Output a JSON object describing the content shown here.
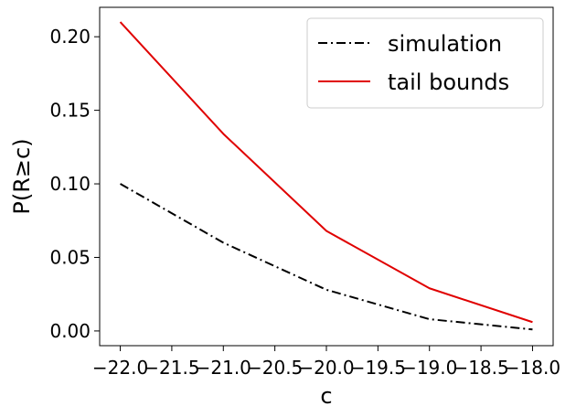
{
  "chart_data": {
    "type": "line",
    "xlabel": "c",
    "ylabel": "P(R≥c)",
    "xlim": [
      -22.2,
      -17.8
    ],
    "ylim": [
      -0.01,
      0.22
    ],
    "xticks": [
      -22.0,
      -21.5,
      -21.0,
      -20.5,
      -20.0,
      -19.5,
      -19.0,
      -18.5,
      -18.0
    ],
    "xtick_labels": [
      "−22.0",
      "−21.5",
      "−21.0",
      "−20.5",
      "−20.0",
      "−19.5",
      "−19.0",
      "−18.5",
      "−18.0"
    ],
    "yticks": [
      0.0,
      0.05,
      0.1,
      0.15,
      0.2
    ],
    "ytick_labels": [
      "0.00",
      "0.05",
      "0.10",
      "0.15",
      "0.20"
    ],
    "legend_position": "top-right",
    "grid": false,
    "series": [
      {
        "name": "simulation",
        "color": "#000000",
        "linestyle": "dashdot",
        "x": [
          -22.0,
          -21.0,
          -20.0,
          -19.0,
          -18.0
        ],
        "y": [
          0.1,
          0.06,
          0.028,
          0.008,
          0.001
        ]
      },
      {
        "name": "tail bounds",
        "color": "#e00000",
        "linestyle": "solid",
        "x": [
          -22.0,
          -21.0,
          -20.0,
          -19.0,
          -18.0
        ],
        "y": [
          0.21,
          0.134,
          0.068,
          0.029,
          0.006
        ]
      }
    ]
  }
}
